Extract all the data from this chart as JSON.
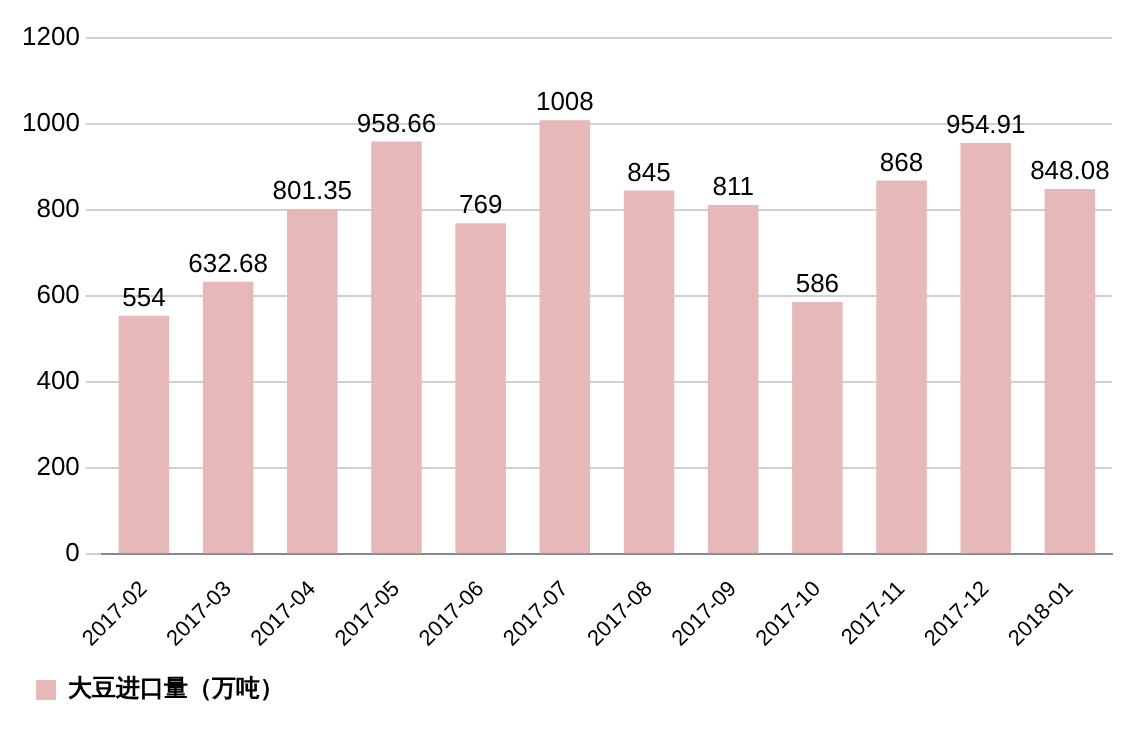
{
  "chart_data": {
    "type": "bar",
    "categories": [
      "2017-02",
      "2017-03",
      "2017-04",
      "2017-05",
      "2017-06",
      "2017-07",
      "2017-08",
      "2017-09",
      "2017-10",
      "2017-11",
      "2017-12",
      "2018-01"
    ],
    "series": [
      {
        "name": "大豆进口量（万吨）",
        "color": "#e6b8b7",
        "values": [
          554,
          632.68,
          801.35,
          958.66,
          769,
          1008,
          845,
          811,
          586,
          868,
          954.91,
          848.08
        ]
      }
    ],
    "ylim": [
      0,
      1200
    ],
    "yticks": [
      0,
      200,
      400,
      600,
      800,
      1000,
      1200
    ],
    "grid": "y",
    "legend": "bottom",
    "data_labels": true
  }
}
